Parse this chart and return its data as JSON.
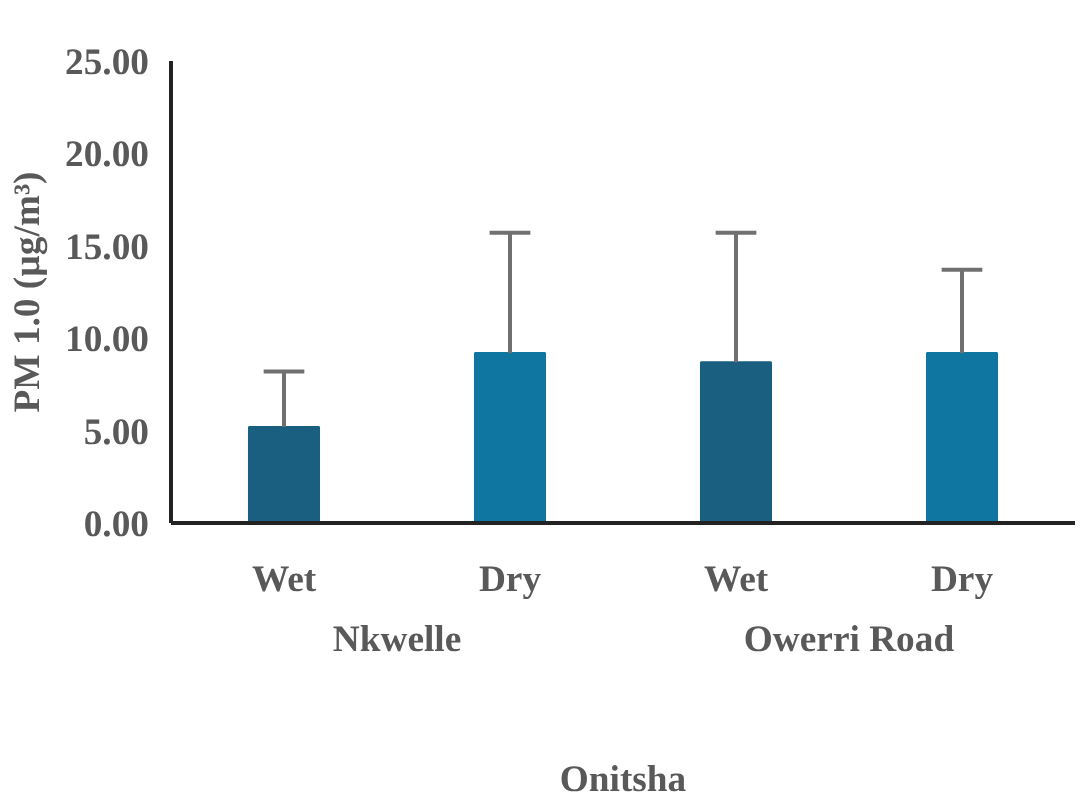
{
  "chart_data": {
    "type": "bar",
    "ylabel": "PM 1.0 (µg/m³)",
    "categories": [
      "Wet",
      "Dry",
      "Wet",
      "Dry"
    ],
    "values": [
      5.2,
      9.2,
      8.7,
      9.2
    ],
    "colors": [
      "#1a5e80",
      "#0e76a0",
      "#1a5e80",
      "#0e76a0"
    ],
    "errors": [
      [
        5.2,
        8.2
      ],
      [
        9.2,
        15.7
      ],
      [
        8.7,
        15.7
      ],
      [
        9.2,
        13.7
      ]
    ],
    "ylim": [
      0,
      25
    ],
    "yticks": [
      {
        "value": 0,
        "label": "0.00"
      },
      {
        "value": 5,
        "label": "5.00"
      },
      {
        "value": 10,
        "label": "10.00"
      },
      {
        "value": 15,
        "label": "15.00"
      },
      {
        "value": 20,
        "label": "20.00"
      },
      {
        "value": 25,
        "label": "25.00"
      }
    ],
    "grid": false,
    "annotations": [
      "Nkwelle",
      "Owerri Road",
      "Onitsha"
    ]
  }
}
